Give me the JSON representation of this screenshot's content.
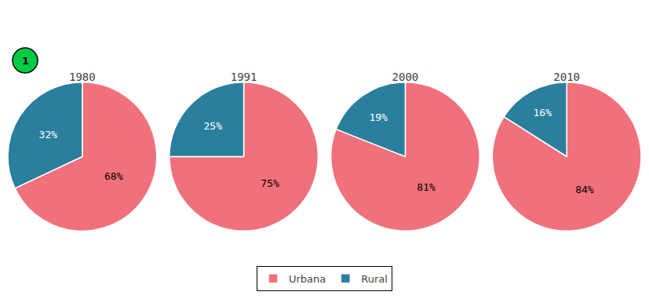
{
  "chart_data": [
    {
      "type": "pie",
      "title": "1980",
      "categories": [
        "Urbana",
        "Rural"
      ],
      "values": [
        68,
        32
      ],
      "value_labels": [
        "68%",
        "32%"
      ],
      "colors": [
        "#f0717b",
        "#2a7f9e"
      ],
      "data_labels": true,
      "legend": "bottom",
      "annotations": [
        {
          "text": "1",
          "color": "#00cc44"
        }
      ]
    },
    {
      "type": "pie",
      "title": "1991",
      "categories": [
        "Urbana",
        "Rural"
      ],
      "values": [
        75,
        25
      ],
      "value_labels": [
        "75%",
        "25%"
      ],
      "colors": [
        "#f0717b",
        "#2a7f9e"
      ],
      "data_labels": true,
      "legend": "bottom"
    },
    {
      "type": "pie",
      "title": "2000",
      "categories": [
        "Urbana",
        "Rural"
      ],
      "values": [
        81,
        19
      ],
      "value_labels": [
        "81%",
        "19%"
      ],
      "colors": [
        "#f0717b",
        "#2a7f9e"
      ],
      "data_labels": true,
      "legend": "bottom"
    },
    {
      "type": "pie",
      "title": "2010",
      "categories": [
        "Urbana",
        "Rural"
      ],
      "values": [
        84,
        16
      ],
      "value_labels": [
        "84%",
        "16%"
      ],
      "colors": [
        "#f0717b",
        "#2a7f9e"
      ],
      "data_labels": true,
      "legend": "bottom"
    }
  ]
}
